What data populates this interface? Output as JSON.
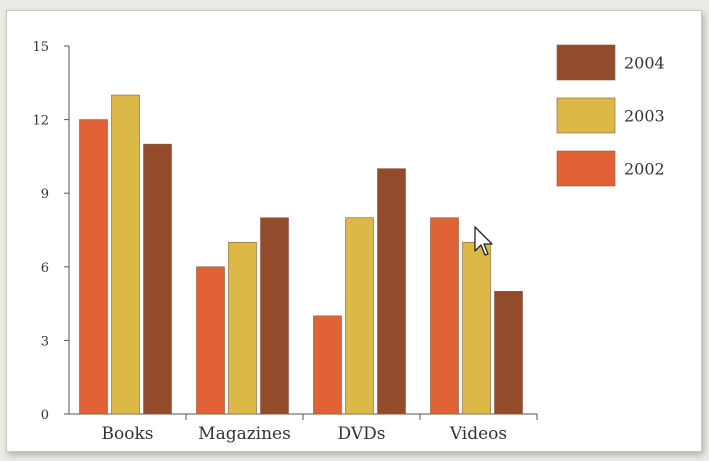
{
  "chart_data": {
    "type": "bar",
    "title": "",
    "xlabel": "",
    "ylabel": "",
    "categories": [
      "Books",
      "Magazines",
      "DVDs",
      "Videos"
    ],
    "series": [
      {
        "name": "2002",
        "color": "#e06236",
        "values": [
          12,
          6,
          4,
          8
        ]
      },
      {
        "name": "2003",
        "color": "#dcb846",
        "values": [
          13,
          7,
          8,
          7
        ]
      },
      {
        "name": "2004",
        "color": "#934b2c",
        "values": [
          11,
          8,
          10,
          5
        ]
      }
    ],
    "ylim": [
      0,
      15
    ],
    "yticks": [
      0,
      3,
      6,
      9,
      12,
      15
    ],
    "grid": false,
    "legend": {
      "position": "top-right",
      "order": [
        "2004",
        "2003",
        "2002"
      ]
    }
  },
  "overlay": {
    "cursor_icon": "mouse-pointer-icon"
  }
}
